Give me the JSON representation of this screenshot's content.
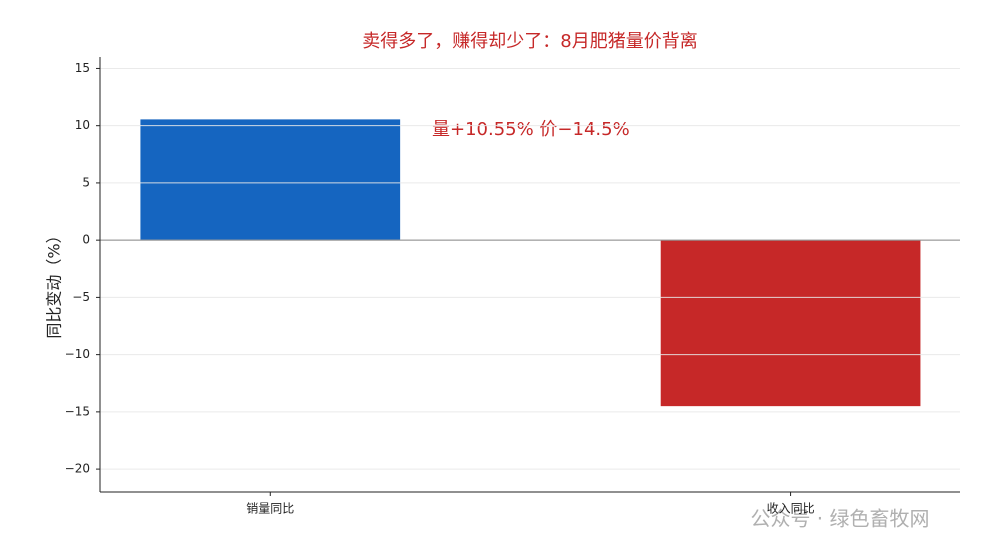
{
  "chart_data": {
    "type": "bar",
    "title": "卖得多了，赚得却少了：8月肥猪量价背离",
    "ylabel": "同比变动（%）",
    "annotation": "量+10.55% 价−14.5%",
    "watermark": "公众号 · 绿色畜牧网",
    "categories": [
      "销量同比",
      "收入同比"
    ],
    "values": [
      10.55,
      -14.5
    ],
    "colors": [
      "#1565c0",
      "#c62828"
    ],
    "ylim": [
      -22,
      16
    ],
    "yticks": [
      {
        "value": -20,
        "label": "−20"
      },
      {
        "value": -15,
        "label": "−15"
      },
      {
        "value": -10,
        "label": "−10"
      },
      {
        "value": -5,
        "label": "−5"
      },
      0,
      5,
      10,
      15
    ],
    "grid": true
  }
}
